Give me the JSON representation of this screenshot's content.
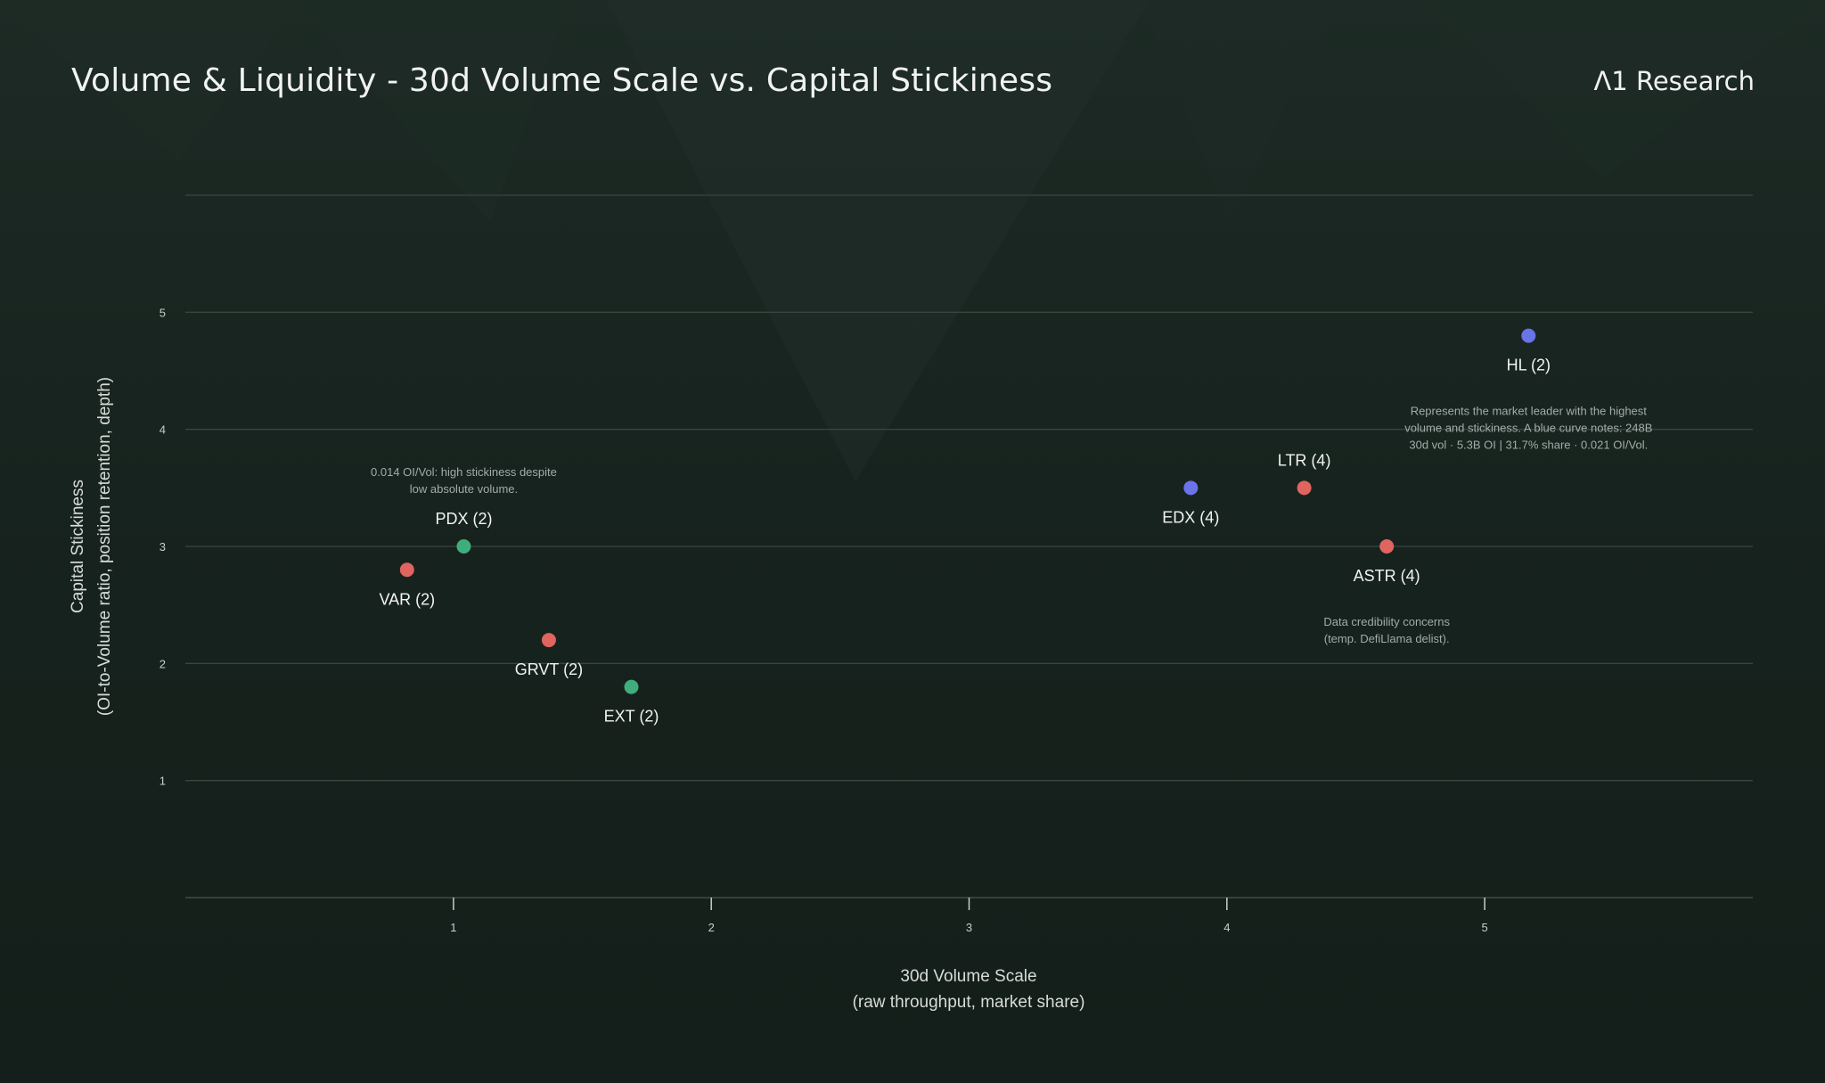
{
  "header": {
    "title": "Volume & Liquidity - 30d Volume Scale vs. Capital Stickiness",
    "brand": "Λ1 Research"
  },
  "colors": {
    "background": "#152019",
    "grid": "#3a4540",
    "red": "#e0645f",
    "green": "#3fad7c",
    "blue": "#6a73e8",
    "label": "#f2f4f2",
    "note": "#a3aca7"
  },
  "chart_data": {
    "type": "scatter",
    "xlabel": "30d Volume Scale",
    "xlabel_sub": "(raw throughput, market share)",
    "ylabel": "Capital Stickiness",
    "ylabel_sub": "(OI-to-Volume ratio, position retention, depth)",
    "xlim": [
      -0.04,
      6.04
    ],
    "ylim": [
      0,
      6
    ],
    "x_ticks": [
      1,
      2,
      3,
      4,
      5
    ],
    "y_ticks": [
      1,
      2,
      3,
      4,
      5
    ],
    "gridlines_y": [
      1,
      2,
      3,
      4,
      5,
      6
    ],
    "points": [
      {
        "label": "HL (2)",
        "x": 5.17,
        "y": 4.8,
        "color": "blue",
        "label_pos": "below"
      },
      {
        "label": "EDX (4)",
        "x": 3.86,
        "y": 3.5,
        "color": "blue",
        "label_pos": "below"
      },
      {
        "label": "LTR (4)",
        "x": 4.3,
        "y": 3.5,
        "color": "red",
        "label_pos": "above"
      },
      {
        "label": "ASTR (4)",
        "x": 4.62,
        "y": 3.0,
        "color": "red",
        "label_pos": "below"
      },
      {
        "label": "PDX (2)",
        "x": 1.04,
        "y": 3.0,
        "color": "green",
        "label_pos": "above"
      },
      {
        "label": "VAR (2)",
        "x": 0.82,
        "y": 2.8,
        "color": "red",
        "label_pos": "below"
      },
      {
        "label": "GRVT (2)",
        "x": 1.37,
        "y": 2.2,
        "color": "red",
        "label_pos": "below"
      },
      {
        "label": "EXT (2)",
        "x": 1.69,
        "y": 1.8,
        "color": "green",
        "label_pos": "below"
      }
    ],
    "annotations": [
      {
        "anchor": "HL (2)",
        "lines": [
          "Represents the market leader with the highest",
          "volume and stickiness. A blue curve notes: 248B",
          "30d vol · 5.3B OI | 31.7% share · 0.021 OI/Vol."
        ]
      },
      {
        "anchor": "PDX (2)",
        "lines": [
          "0.014 OI/Vol: high stickiness despite",
          "low absolute volume."
        ]
      },
      {
        "anchor": "ASTR (4)",
        "lines": [
          "Data credibility concerns",
          "(temp. DefiLlama delist)."
        ]
      }
    ]
  }
}
